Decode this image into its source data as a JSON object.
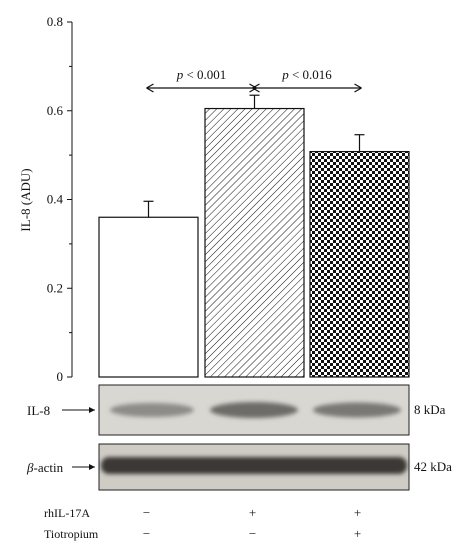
{
  "chart_data": {
    "type": "bar",
    "ylabel": "IL-8 (ADU)",
    "ylim": [
      0,
      0.8
    ],
    "yticks": [
      "0",
      "0.2",
      "0.4",
      "0.6",
      "0.8"
    ],
    "grid": false,
    "bars": [
      {
        "value": 0.36,
        "error": 0.036,
        "pattern": "open"
      },
      {
        "value": 0.605,
        "error": 0.03,
        "pattern": "diagonal-hatch"
      },
      {
        "value": 0.508,
        "error": 0.038,
        "pattern": "checker"
      }
    ],
    "comparisons": [
      {
        "from_bar": 0,
        "to_bar": 1,
        "p_letter": "p",
        "p_rest": " < 0.001"
      },
      {
        "from_bar": 1,
        "to_bar": 2,
        "p_letter": "p",
        "p_rest": " < 0.016"
      }
    ]
  },
  "blots": [
    {
      "label": "IL-8",
      "size": "8 kDa"
    },
    {
      "label_italic": "β",
      "label_rest": "-actin",
      "size": "42 kDa"
    }
  ],
  "conditions": [
    {
      "label": "rhIL-17A",
      "signs": [
        "−",
        "+",
        "+"
      ]
    },
    {
      "label": "Tiotropium",
      "signs": [
        "−",
        "−",
        "+"
      ]
    }
  ]
}
